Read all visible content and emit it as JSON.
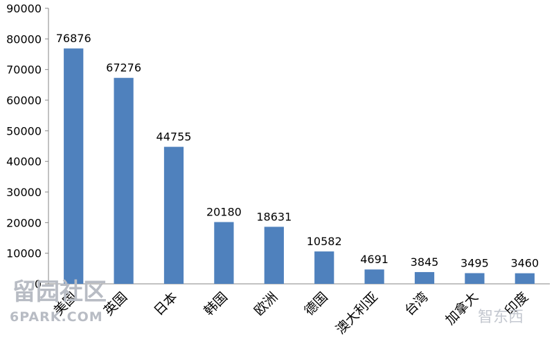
{
  "chart_data": {
    "type": "bar",
    "categories": [
      "美国",
      "英国",
      "日本",
      "韩国",
      "欧洲",
      "德国",
      "澳大利亚",
      "台湾",
      "加拿大",
      "印度"
    ],
    "values": [
      76876,
      67276,
      44755,
      20180,
      18631,
      10582,
      4691,
      3845,
      3495,
      3460
    ],
    "data_labels": [
      "76876",
      "67276",
      "44755",
      "20180",
      "18631",
      "10582",
      "4691",
      "3845",
      "3495",
      "3460"
    ],
    "yticks": [
      "0",
      "10000",
      "20000",
      "30000",
      "40000",
      "50000",
      "60000",
      "70000",
      "80000",
      "90000"
    ],
    "ylim": [
      0,
      90000
    ],
    "title": "",
    "xlabel": "",
    "ylabel": "",
    "grid": false,
    "legend": "none",
    "bar_color": "#4f81bd"
  },
  "watermarks": {
    "left_top": "留园社区",
    "left_bottom": "6PARK.COM",
    "right": "智东西"
  }
}
